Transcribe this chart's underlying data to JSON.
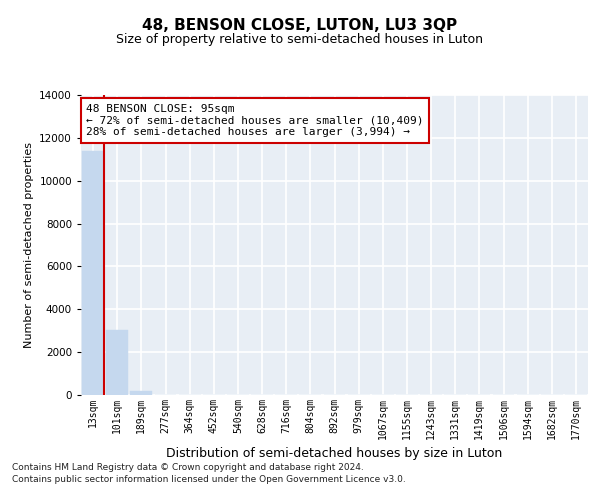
{
  "title": "48, BENSON CLOSE, LUTON, LU3 3QP",
  "subtitle": "Size of property relative to semi-detached houses in Luton",
  "xlabel": "Distribution of semi-detached houses by size in Luton",
  "ylabel": "Number of semi-detached properties",
  "categories": [
    "13sqm",
    "101sqm",
    "189sqm",
    "277sqm",
    "364sqm",
    "452sqm",
    "540sqm",
    "628sqm",
    "716sqm",
    "804sqm",
    "892sqm",
    "979sqm",
    "1067sqm",
    "1155sqm",
    "1243sqm",
    "1331sqm",
    "1419sqm",
    "1506sqm",
    "1594sqm",
    "1682sqm",
    "1770sqm"
  ],
  "values": [
    11400,
    3050,
    200,
    0,
    0,
    0,
    0,
    0,
    0,
    0,
    0,
    0,
    0,
    0,
    0,
    0,
    0,
    0,
    0,
    0,
    0
  ],
  "bar_color": "#c5d8ee",
  "bar_edge_color": "#c5d8ee",
  "property_line_color": "#cc0000",
  "property_line_x": 0.575,
  "ylim": [
    0,
    14000
  ],
  "annotation_line1": "48 BENSON CLOSE: 95sqm",
  "annotation_line2": "← 72% of semi-detached houses are smaller (10,409)",
  "annotation_line3": "28% of semi-detached houses are larger (3,994) →",
  "annotation_box_color": "#cc0000",
  "footer1": "Contains HM Land Registry data © Crown copyright and database right 2024.",
  "footer2": "Contains public sector information licensed under the Open Government Licence v3.0.",
  "background_color": "#e8eef5",
  "grid_color": "#ffffff",
  "title_fontsize": 11,
  "subtitle_fontsize": 9,
  "ylabel_fontsize": 8,
  "xlabel_fontsize": 9,
  "tick_fontsize": 7,
  "footer_fontsize": 6.5,
  "annotation_fontsize": 8
}
